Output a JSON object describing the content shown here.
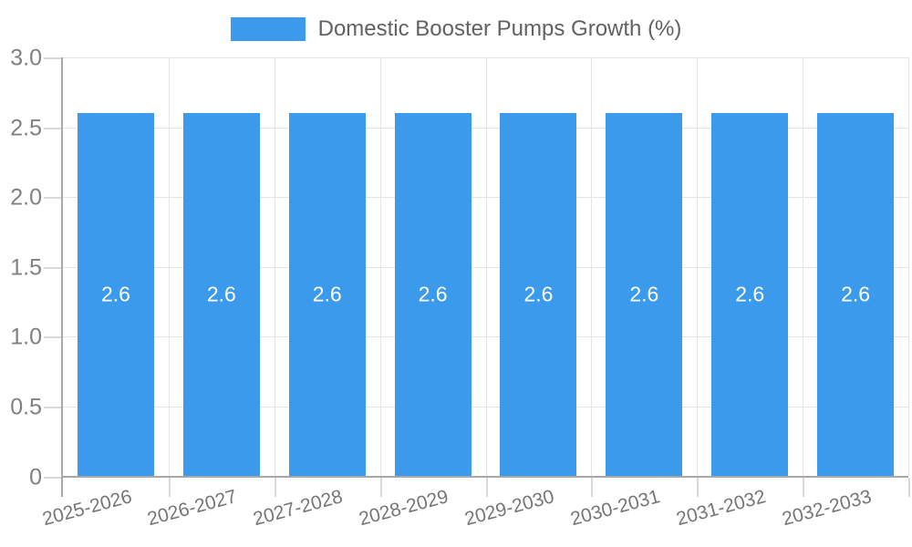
{
  "legend": {
    "label": "Domestic Booster Pumps Growth (%)"
  },
  "colors": {
    "bar": "#3c9aed",
    "grid": "#e4e4e4",
    "tick": "#d9d9d9",
    "axis": "#a8a8a8",
    "y_label_text": "#808080",
    "x_label_text": "#757575",
    "legend_text": "#616161",
    "value_label_text": "#ffffff",
    "background": "#ffffff"
  },
  "chart_data": {
    "type": "bar",
    "title": "Domestic Booster Pumps Growth (%)",
    "xlabel": "",
    "ylabel": "",
    "categories": [
      "2025-2026",
      "2026-2027",
      "2027-2028",
      "2028-2029",
      "2029-2030",
      "2030-2031",
      "2031-2032",
      "2032-2033"
    ],
    "values": [
      2.6,
      2.6,
      2.6,
      2.6,
      2.6,
      2.6,
      2.6,
      2.6
    ],
    "value_labels": [
      "2.6",
      "2.6",
      "2.6",
      "2.6",
      "2.6",
      "2.6",
      "2.6",
      "2.6"
    ],
    "ylim": [
      0,
      3
    ],
    "yticks": [
      "3.0",
      "2.5",
      "2.0",
      "1.5",
      "1.0",
      "0.5",
      "0"
    ],
    "grid": true,
    "legend_position": "top"
  }
}
